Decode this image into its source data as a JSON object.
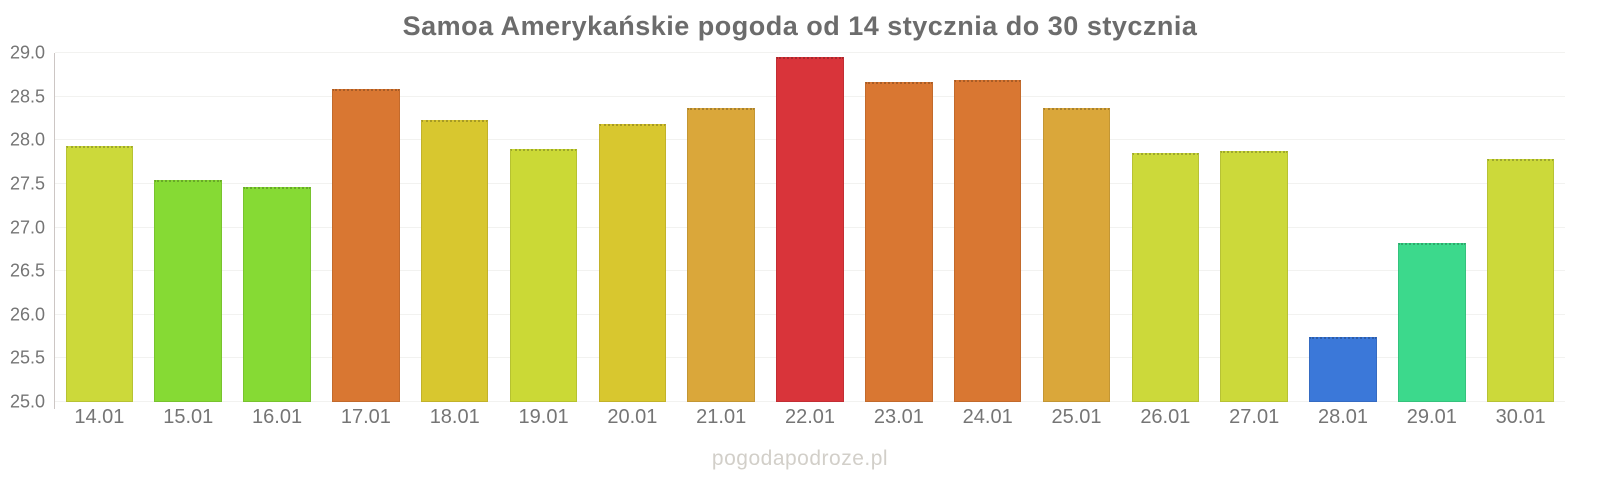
{
  "title": "Samoa Amerykańskie pogoda od 14 stycznia do 30 stycznia",
  "watermark": "pogodapodroze.pl",
  "chart_data": {
    "type": "bar",
    "title": "Samoa Amerykańskie pogoda od 14 stycznia do 30 stycznia",
    "categories": [
      "14.01",
      "15.01",
      "16.01",
      "17.01",
      "18.01",
      "19.01",
      "20.01",
      "21.01",
      "22.01",
      "23.01",
      "24.01",
      "25.01",
      "26.01",
      "27.01",
      "28.01",
      "29.01",
      "30.01"
    ],
    "values": [
      27.93,
      27.54,
      27.47,
      28.59,
      28.23,
      27.9,
      28.19,
      28.37,
      28.96,
      28.67,
      28.69,
      28.37,
      27.85,
      27.88,
      25.74,
      26.82,
      27.79
    ],
    "bar_colors": [
      "#ccd93a",
      "#86da34",
      "#86da34",
      "#d97732",
      "#d8c72f",
      "#cbd936",
      "#d8c72f",
      "#daa73a",
      "#d9343a",
      "#d97732",
      "#d97732",
      "#daa73a",
      "#ccd93a",
      "#ccd93a",
      "#3b78d9",
      "#3cd98c",
      "#ccd93a"
    ],
    "xlabel": "",
    "ylabel": "",
    "ylim": [
      25.0,
      29.0
    ],
    "yticks": [
      "29.0",
      "28.5",
      "28.0",
      "27.5",
      "27.0",
      "26.5",
      "26.0",
      "25.5",
      "25.0"
    ],
    "grid": true,
    "legend": false
  },
  "style": {
    "background": "#ffffff",
    "title_color": "#6c6c6c",
    "axis_label_color": "#757575",
    "gridline_color": "#f2f2f0",
    "axis_line_color": "#ccc6c4",
    "watermark_color": "#d2cfc9"
  }
}
